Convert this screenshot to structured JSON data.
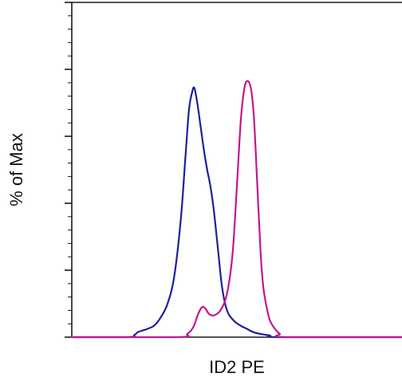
{
  "chart_data": {
    "type": "line",
    "xlabel": "ID2 PE",
    "ylabel": "% of Max",
    "xlim": [
      0,
      100
    ],
    "ylim": [
      0,
      100
    ],
    "y_major_ticks": [
      0,
      20,
      40,
      60,
      80,
      100
    ],
    "y_minor_ticks_per_major": 4,
    "grid": false,
    "legend": "none",
    "series": [
      {
        "color": "#1f1f9e",
        "x": [
          0,
          17,
          19,
          20,
          21.5,
          23,
          25,
          27,
          29,
          31,
          33,
          34.5,
          35.5,
          36.4,
          37.1,
          38,
          39,
          40,
          41,
          42,
          43,
          44.3,
          45.5,
          47,
          49,
          51,
          53,
          55,
          57,
          60,
          63,
          100
        ],
        "y": [
          0,
          0,
          0.7,
          1.5,
          2,
          2.5,
          3.5,
          6,
          10,
          18,
          35,
          55,
          68,
          73,
          74.5,
          70,
          63,
          56,
          50,
          45,
          38,
          26,
          15,
          8,
          5,
          3.5,
          2.5,
          1.5,
          1,
          0.5,
          0,
          0
        ]
      },
      {
        "color": "#c0188f",
        "x": [
          0,
          32,
          35,
          36.8,
          38.3,
          39.5,
          40.5,
          41.5,
          43,
          45,
          47,
          48.7,
          50,
          51.2,
          52.3,
          53.3,
          54.3,
          55.2,
          56.2,
          57.2,
          58,
          59,
          60,
          61.5,
          63,
          65,
          100
        ],
        "y": [
          0,
          0,
          1,
          3,
          7,
          9,
          8.5,
          7,
          6.5,
          8,
          13,
          25,
          45,
          65,
          74.5,
          76.5,
          74,
          65,
          45,
          25,
          15,
          9,
          5,
          2.5,
          1,
          0,
          0
        ]
      }
    ]
  }
}
